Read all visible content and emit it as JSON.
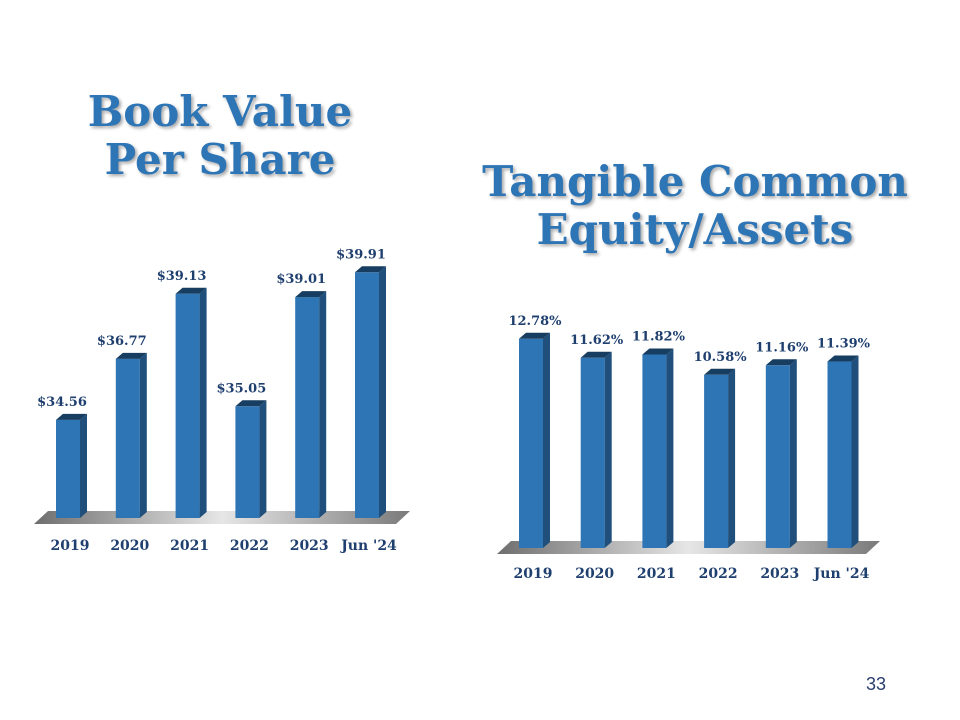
{
  "colors": {
    "bar_front": "#2e75b6",
    "bar_side": "#1f4f7a",
    "bar_top": "#173d61",
    "label": "#1f3f6e",
    "title": "#2e75b6"
  },
  "page_number": "33",
  "chart_data": [
    {
      "type": "bar",
      "title": [
        "Book Value",
        "Per Share"
      ],
      "categories": [
        "2019",
        "2020",
        "2021",
        "2022",
        "2023",
        "Jun '24"
      ],
      "values": [
        34.56,
        36.77,
        39.13,
        35.05,
        39.01,
        39.91
      ],
      "value_labels": [
        "$34.56",
        "$36.77",
        "$39.13",
        "$35.05",
        "$39.01",
        "$39.91"
      ],
      "ylim": [
        31,
        40.5
      ],
      "grid": false,
      "legend": "none"
    },
    {
      "type": "bar",
      "title": [
        "Tangible Common",
        "Equity/Assets"
      ],
      "categories": [
        "2019",
        "2020",
        "2021",
        "2022",
        "2023",
        "Jun '24"
      ],
      "values": [
        12.78,
        11.62,
        11.82,
        10.58,
        11.16,
        11.39
      ],
      "value_labels": [
        "12.78%",
        "11.62%",
        "11.82%",
        "10.58%",
        "11.16%",
        "11.39%"
      ],
      "ylim": [
        0,
        13.5
      ],
      "grid": false,
      "legend": "none"
    }
  ]
}
